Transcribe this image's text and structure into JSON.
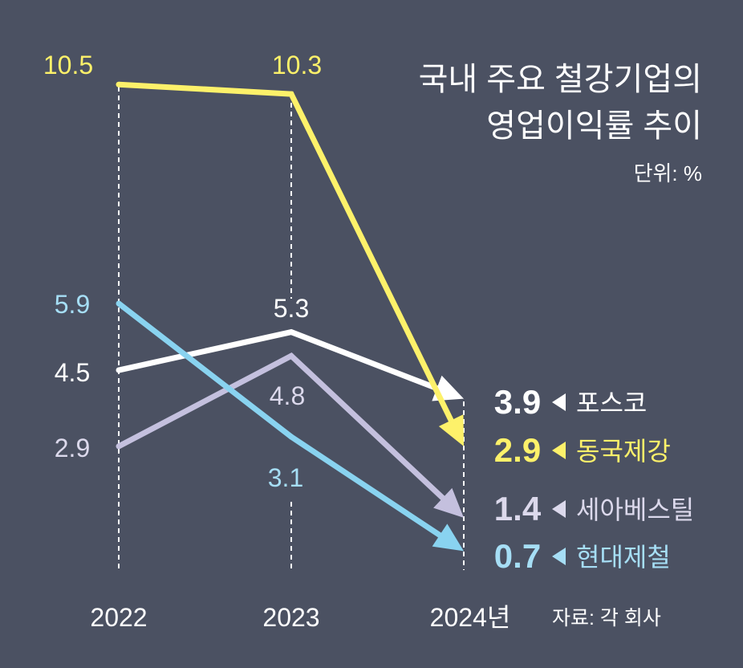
{
  "chart_data": {
    "type": "line",
    "title_lines": [
      "국내 주요 철강기업의",
      "영업이익률 추이"
    ],
    "unit": "단위: %",
    "source": "자료: 각 회사",
    "categories": [
      "2022",
      "2023",
      "2024년"
    ],
    "ylim": [
      0,
      11
    ],
    "grid": false,
    "series": [
      {
        "name": "포스코",
        "values": [
          4.5,
          5.3,
          3.9
        ],
        "value_labels": [
          "4.5",
          "5.3",
          "3.9"
        ],
        "color": "#ffffff",
        "label_color": "#ffffff"
      },
      {
        "name": "동국제강",
        "values": [
          10.5,
          10.3,
          2.9
        ],
        "value_labels": [
          "10.5",
          "10.3",
          "2.9"
        ],
        "color": "#fdf16a",
        "label_color": "#fdf16a"
      },
      {
        "name": "세아베스틸",
        "values": [
          2.9,
          4.8,
          1.4
        ],
        "value_labels": [
          "2.9",
          "4.8",
          "1.4"
        ],
        "color": "#c4c0de",
        "label_color": "#dcd9ec"
      },
      {
        "name": "현대제철",
        "values": [
          5.9,
          3.1,
          0.7
        ],
        "value_labels": [
          "5.9",
          "3.1",
          "0.7"
        ],
        "color": "#89d3f0",
        "label_color": "#a6def5"
      }
    ]
  }
}
